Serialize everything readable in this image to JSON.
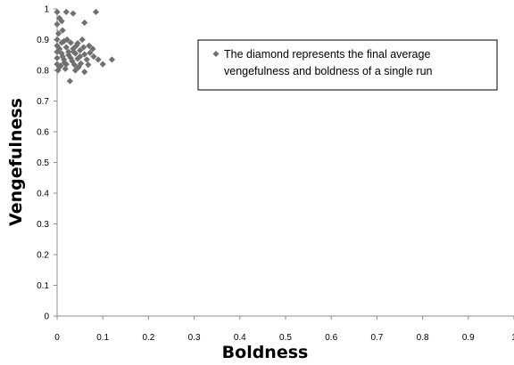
{
  "chart_data": {
    "type": "scatter",
    "title": "",
    "xlabel": "Boldness",
    "ylabel": "Vengefulness",
    "xlim": [
      0,
      1
    ],
    "ylim": [
      0,
      1
    ],
    "xticks": [
      "0",
      "0.1",
      "0.2",
      "0.3",
      "0.4",
      "0.5",
      "0.6",
      "0.7",
      "0.8",
      "0.9",
      "1"
    ],
    "yticks": [
      "0",
      "0.1",
      "0.2",
      "0.3",
      "0.4",
      "0.5",
      "0.6",
      "0.7",
      "0.8",
      "0.9",
      "1"
    ],
    "grid": false,
    "legend_position": "top-right",
    "legend_lines": [
      "The diamond represents the final average",
      "vengefulness and boldness of a single run"
    ],
    "marker_color": "#707070",
    "marker": "diamond",
    "points": [
      {
        "x": 0.0,
        "y": 0.99
      },
      {
        "x": 0.005,
        "y": 0.97
      },
      {
        "x": 0.01,
        "y": 0.96
      },
      {
        "x": 0.0,
        "y": 0.95
      },
      {
        "x": 0.012,
        "y": 0.93
      },
      {
        "x": 0.003,
        "y": 0.92
      },
      {
        "x": 0.02,
        "y": 0.99
      },
      {
        "x": 0.035,
        "y": 0.985
      },
      {
        "x": 0.085,
        "y": 0.99
      },
      {
        "x": 0.06,
        "y": 0.955
      },
      {
        "x": 0.0,
        "y": 0.9
      },
      {
        "x": 0.015,
        "y": 0.895
      },
      {
        "x": 0.03,
        "y": 0.89
      },
      {
        "x": 0.045,
        "y": 0.888
      },
      {
        "x": 0.055,
        "y": 0.9
      },
      {
        "x": 0.0,
        "y": 0.88
      },
      {
        "x": 0.005,
        "y": 0.87
      },
      {
        "x": 0.02,
        "y": 0.875
      },
      {
        "x": 0.035,
        "y": 0.87
      },
      {
        "x": 0.05,
        "y": 0.865
      },
      {
        "x": 0.07,
        "y": 0.88
      },
      {
        "x": 0.078,
        "y": 0.87
      },
      {
        "x": 0.0,
        "y": 0.86
      },
      {
        "x": 0.01,
        "y": 0.855
      },
      {
        "x": 0.025,
        "y": 0.85
      },
      {
        "x": 0.04,
        "y": 0.855
      },
      {
        "x": 0.06,
        "y": 0.852
      },
      {
        "x": 0.072,
        "y": 0.857
      },
      {
        "x": 0.0,
        "y": 0.84
      },
      {
        "x": 0.015,
        "y": 0.835
      },
      {
        "x": 0.03,
        "y": 0.84
      },
      {
        "x": 0.045,
        "y": 0.838
      },
      {
        "x": 0.065,
        "y": 0.835
      },
      {
        "x": 0.09,
        "y": 0.835
      },
      {
        "x": 0.12,
        "y": 0.835
      },
      {
        "x": 0.0,
        "y": 0.82
      },
      {
        "x": 0.008,
        "y": 0.815
      },
      {
        "x": 0.02,
        "y": 0.82
      },
      {
        "x": 0.038,
        "y": 0.818
      },
      {
        "x": 0.052,
        "y": 0.822
      },
      {
        "x": 0.068,
        "y": 0.818
      },
      {
        "x": 0.1,
        "y": 0.82
      },
      {
        "x": 0.002,
        "y": 0.8
      },
      {
        "x": 0.018,
        "y": 0.805
      },
      {
        "x": 0.04,
        "y": 0.8
      },
      {
        "x": 0.06,
        "y": 0.795
      },
      {
        "x": 0.005,
        "y": 0.81
      },
      {
        "x": 0.025,
        "y": 0.86
      },
      {
        "x": 0.028,
        "y": 0.765
      },
      {
        "x": 0.042,
        "y": 0.88
      },
      {
        "x": 0.012,
        "y": 0.845
      },
      {
        "x": 0.033,
        "y": 0.83
      },
      {
        "x": 0.05,
        "y": 0.845
      },
      {
        "x": 0.08,
        "y": 0.845
      },
      {
        "x": 0.01,
        "y": 0.89
      },
      {
        "x": 0.022,
        "y": 0.9
      },
      {
        "x": 0.047,
        "y": 0.81
      },
      {
        "x": 0.058,
        "y": 0.875
      },
      {
        "x": 0.016,
        "y": 0.825
      },
      {
        "x": 0.036,
        "y": 0.86
      }
    ]
  }
}
